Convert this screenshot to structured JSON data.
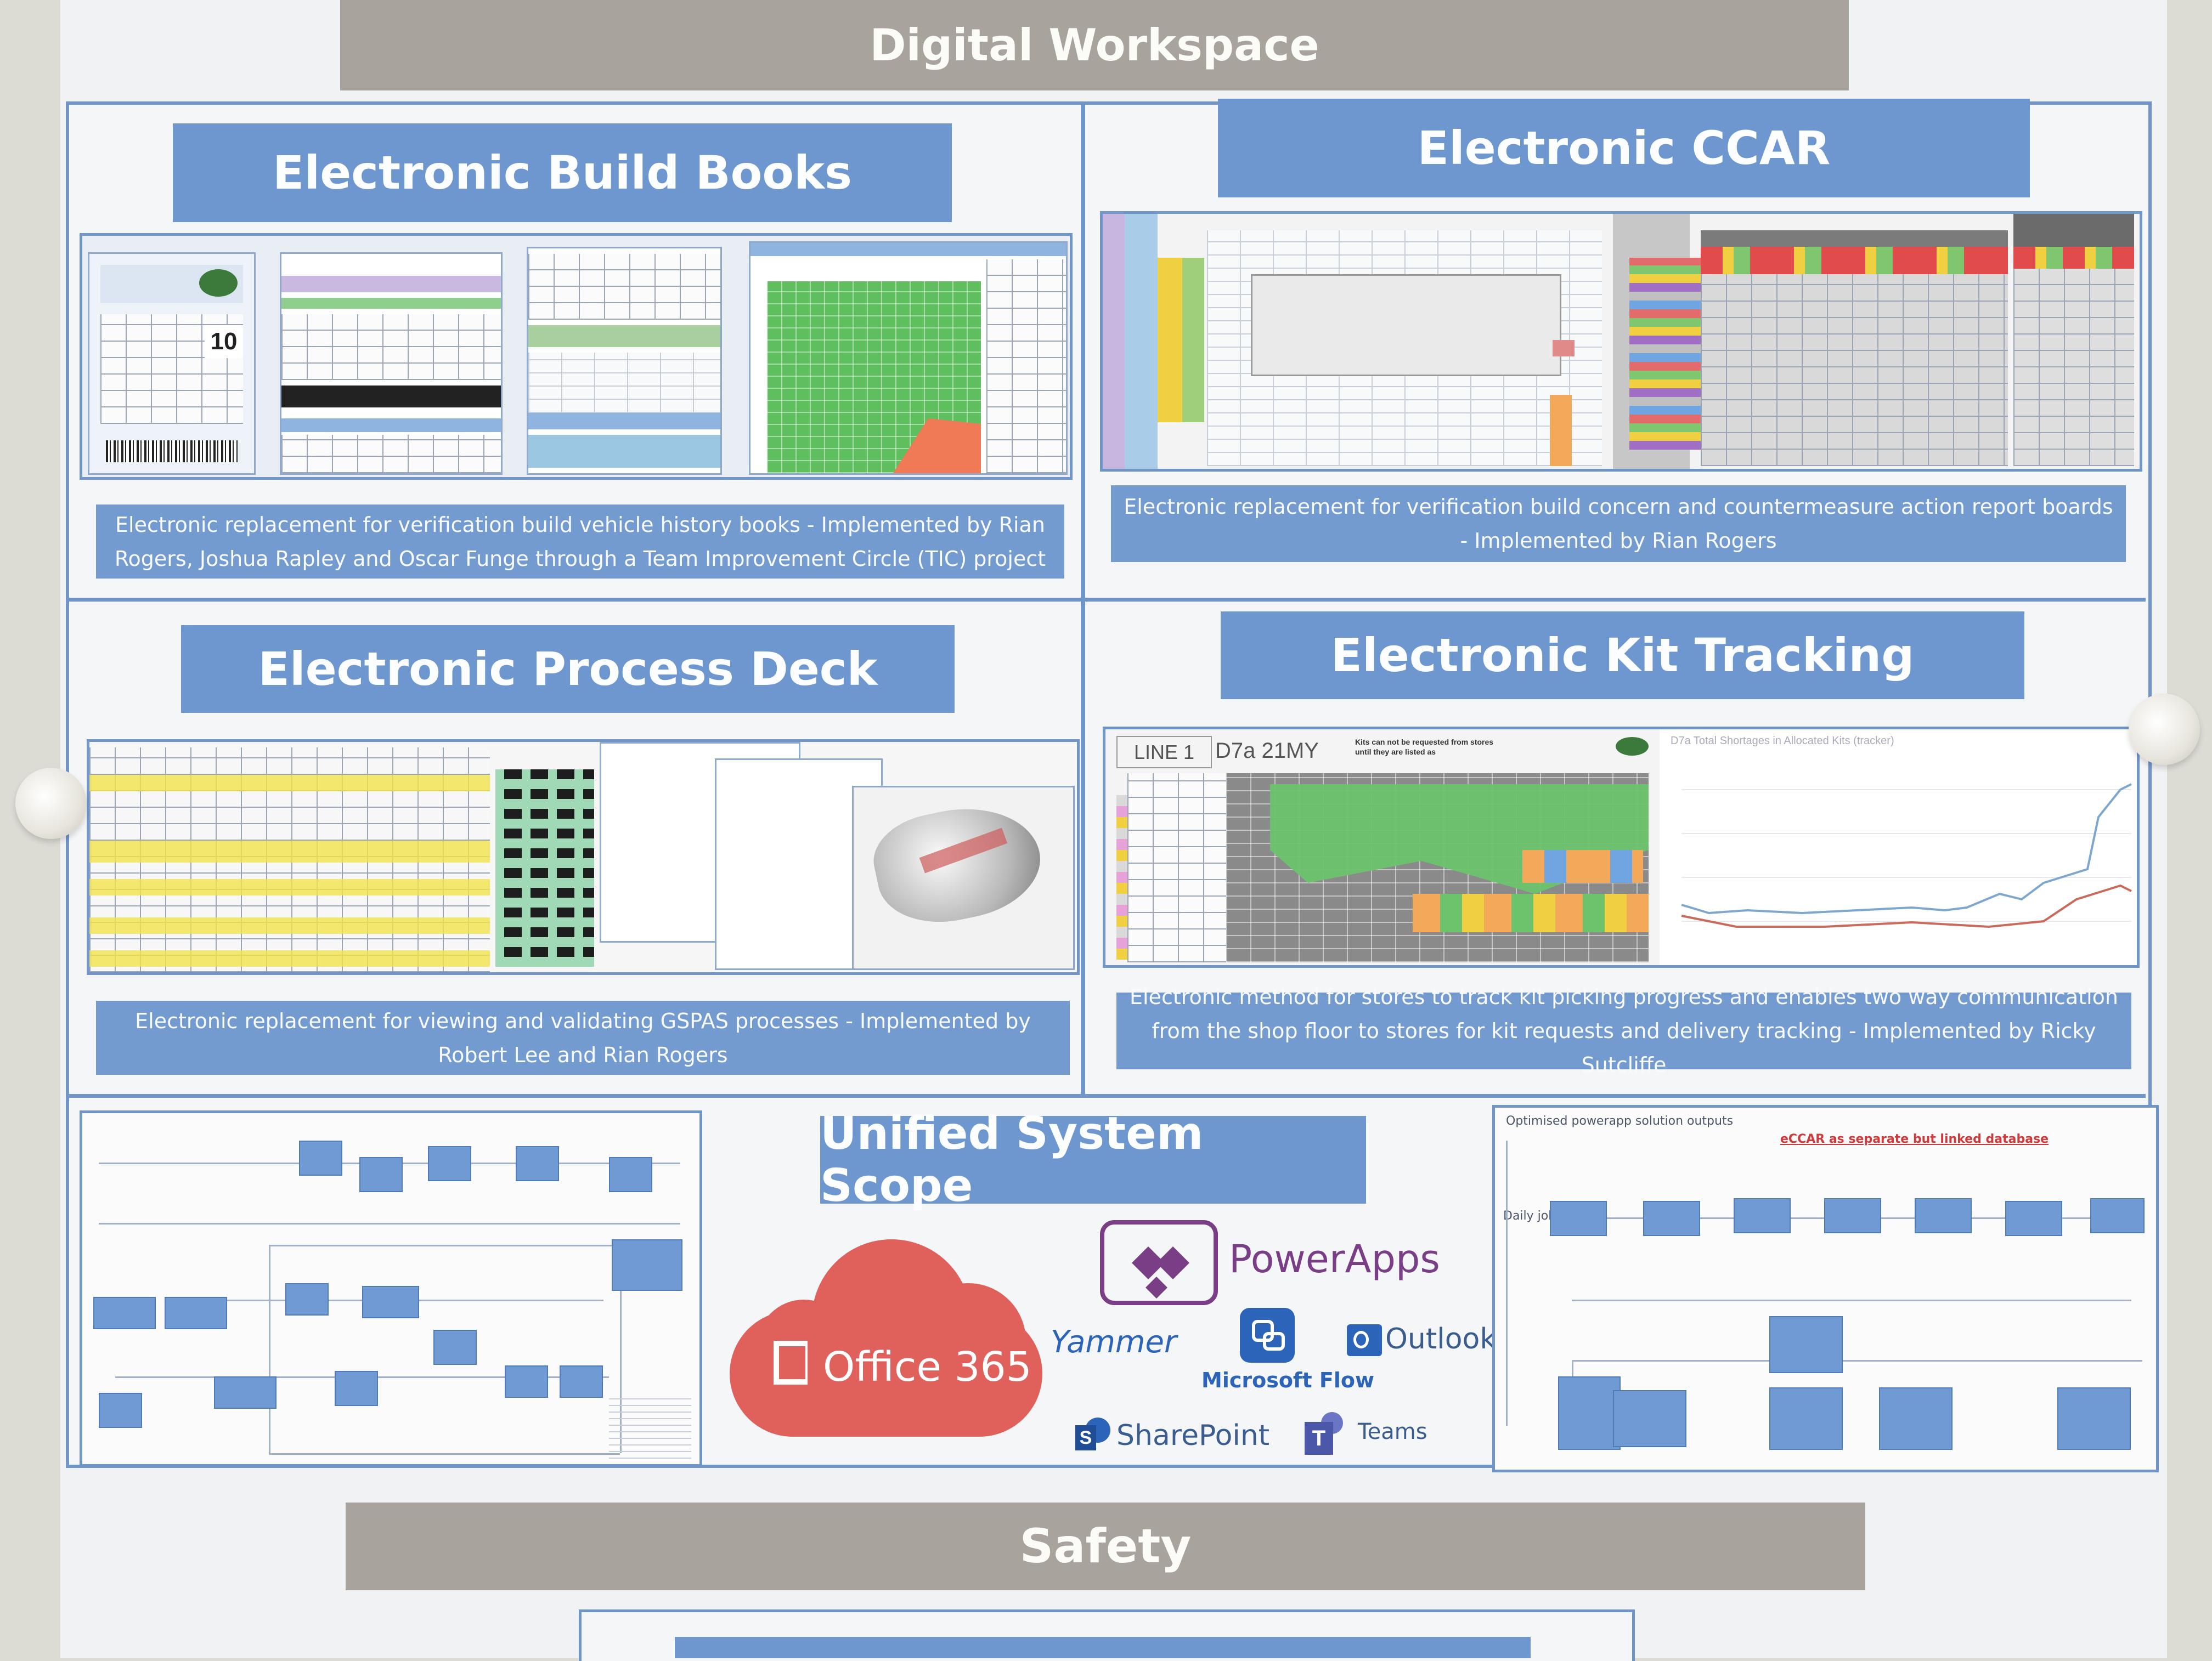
{
  "header": {
    "title": "Digital Workspace"
  },
  "panels": {
    "build_books": {
      "title": "Electronic Build Books",
      "caption": "Electronic replacement for verification build vehicle history books - Implemented by Rian Rogers, Joshua Rapley and Oscar Funge through a Team Improvement Circle (TIC) project",
      "badge_number": "10"
    },
    "ccar": {
      "title": "Electronic CCAR",
      "caption": "Electronic replacement for verification build concern and countermeasure action report boards - Implemented by Rian Rogers"
    },
    "process_deck": {
      "title": "Electronic Process Deck",
      "caption": "Electronic replacement for viewing and validating GSPAS processes - Implemented by Robert Lee and Rian Rogers"
    },
    "kit_tracking": {
      "title": "Electronic Kit Tracking",
      "caption": "Electronic method for stores to track kit picking progress and enables two way communication from the shop floor to stores for kit requests and delivery tracking -  Implemented by Ricky Sutcliffe",
      "line_label": "LINE 1",
      "model_label": "D7a 21MY",
      "notice": "Kits can not be requested from stores until they are listed as",
      "chart_title": "D7a Total Shortages in Allocated Kits (tracker)"
    },
    "unified": {
      "title": "Unified System Scope",
      "right_diagram_title": "Optimised powerapp solution outputs",
      "right_diagram_note": "eCCAR as separate but linked database",
      "right_diagram_row_label": "Daily job",
      "logos": {
        "office365": "Office 365",
        "powerapps": "PowerApps",
        "yammer": "Yammer",
        "flow": "Microsoft Flow",
        "outlook": "Outlook",
        "sharepoint": "SharePoint",
        "teams": "Teams"
      },
      "colors": {
        "office365": "#e0605c",
        "powerapps": "#7a3e86",
        "microsoft_blue": "#2b64b8"
      }
    }
  },
  "footer": {
    "title": "Safety"
  }
}
